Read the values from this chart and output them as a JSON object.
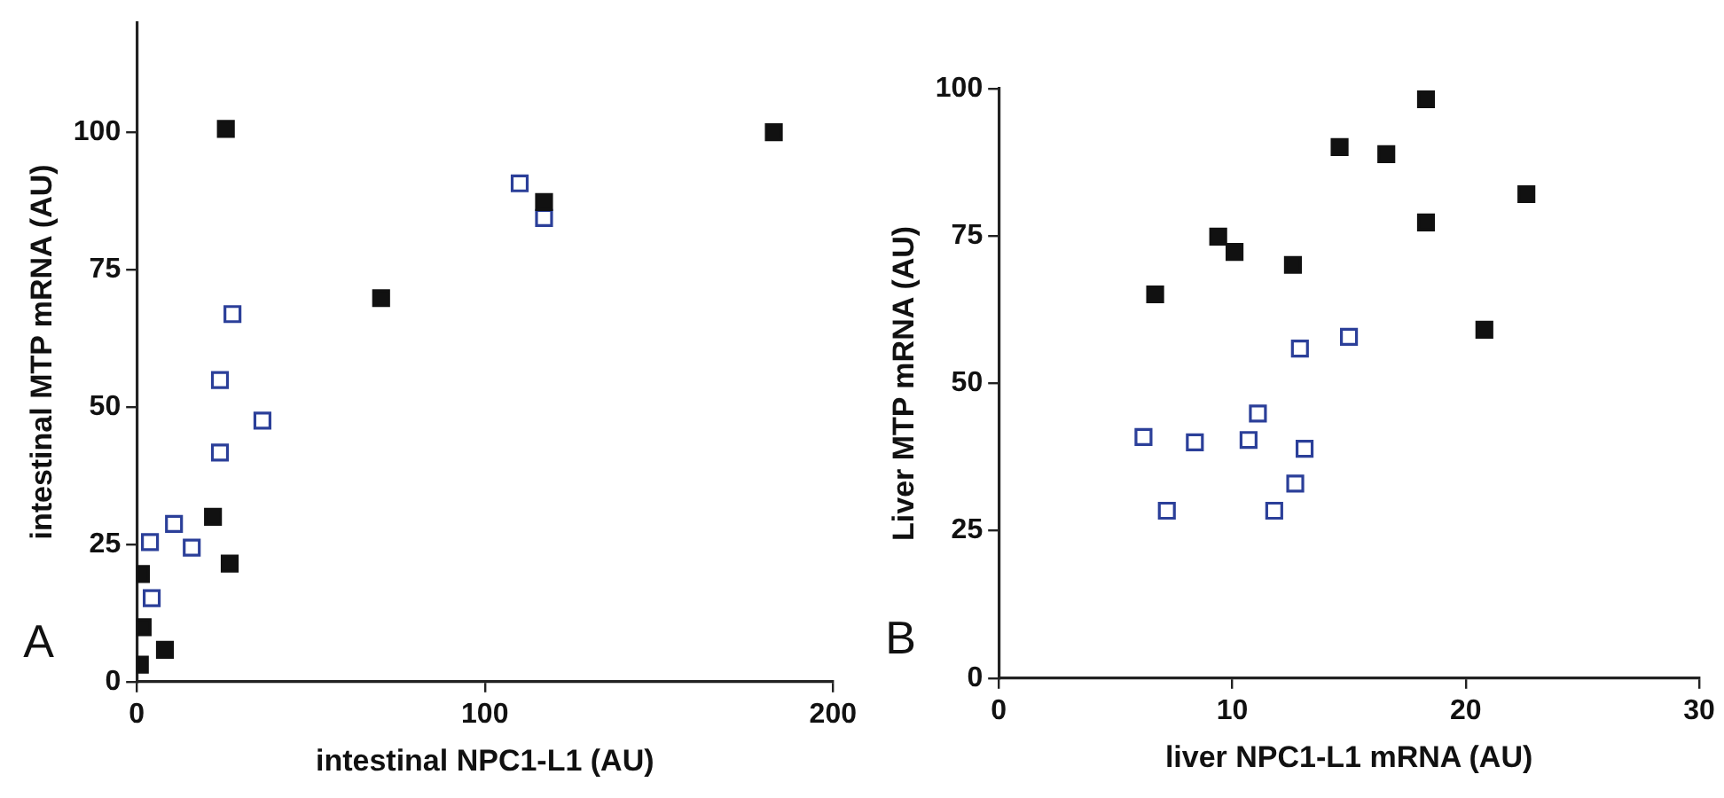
{
  "chart_data": [
    {
      "type": "scatter",
      "xlabel": "intestinal NPC1-L1 (AU)",
      "ylabel": "intestinal MTP mRNA (AU)",
      "annotations": [
        "A"
      ],
      "xlim": [
        0,
        200
      ],
      "xticks": [
        0,
        100,
        200
      ],
      "ylim": [
        0,
        120
      ],
      "yticks": [
        0,
        25,
        50,
        75,
        100
      ],
      "marker": "square",
      "series": [
        {
          "color": "#111111",
          "x": [
            25.6,
            183,
            117,
            70.2,
            21.9,
            26.7,
            1.2,
            1.7,
            8.1,
            0.9
          ],
          "values": [
            100.6,
            100,
            87.3,
            69.8,
            30,
            21.5,
            19.6,
            9.9,
            5.8,
            3.1
          ]
        },
        {
          "color": "#2b3f99",
          "x": [
            110,
            117,
            27.5,
            23.9,
            36.1,
            23.9,
            10.7,
            3.8,
            15.8,
            4.3
          ],
          "values": [
            90.7,
            84.4,
            66.9,
            54.9,
            47.5,
            41.7,
            28.7,
            25.4,
            24.4,
            15.2
          ]
        }
      ]
    },
    {
      "type": "scatter",
      "xlabel": "liver NPC1-L1 mRNA (AU)",
      "ylabel": "Liver MTP mRNA (AU)",
      "annotations": [
        "B"
      ],
      "xlim": [
        0,
        30
      ],
      "xticks": [
        0,
        10,
        20,
        30
      ],
      "ylim": [
        0,
        100
      ],
      "yticks": [
        0,
        25,
        50,
        75,
        100
      ],
      "marker": "square",
      "series": [
        {
          "color": "#111111",
          "x": [
            18.3,
            14.6,
            16.6,
            22.6,
            18.3,
            9.4,
            10.1,
            12.6,
            6.7,
            20.8
          ],
          "values": [
            98.2,
            90.1,
            88.9,
            82.1,
            77.3,
            74.9,
            72.3,
            70.1,
            65.1,
            59.1
          ]
        },
        {
          "color": "#2b3f99",
          "x": [
            15.0,
            12.9,
            11.1,
            6.2,
            8.4,
            10.7,
            13.1,
            12.7,
            7.2,
            11.8
          ],
          "values": [
            57.9,
            55.9,
            44.9,
            40.9,
            40.0,
            40.4,
            38.9,
            33.0,
            28.4,
            28.4
          ]
        }
      ]
    }
  ]
}
